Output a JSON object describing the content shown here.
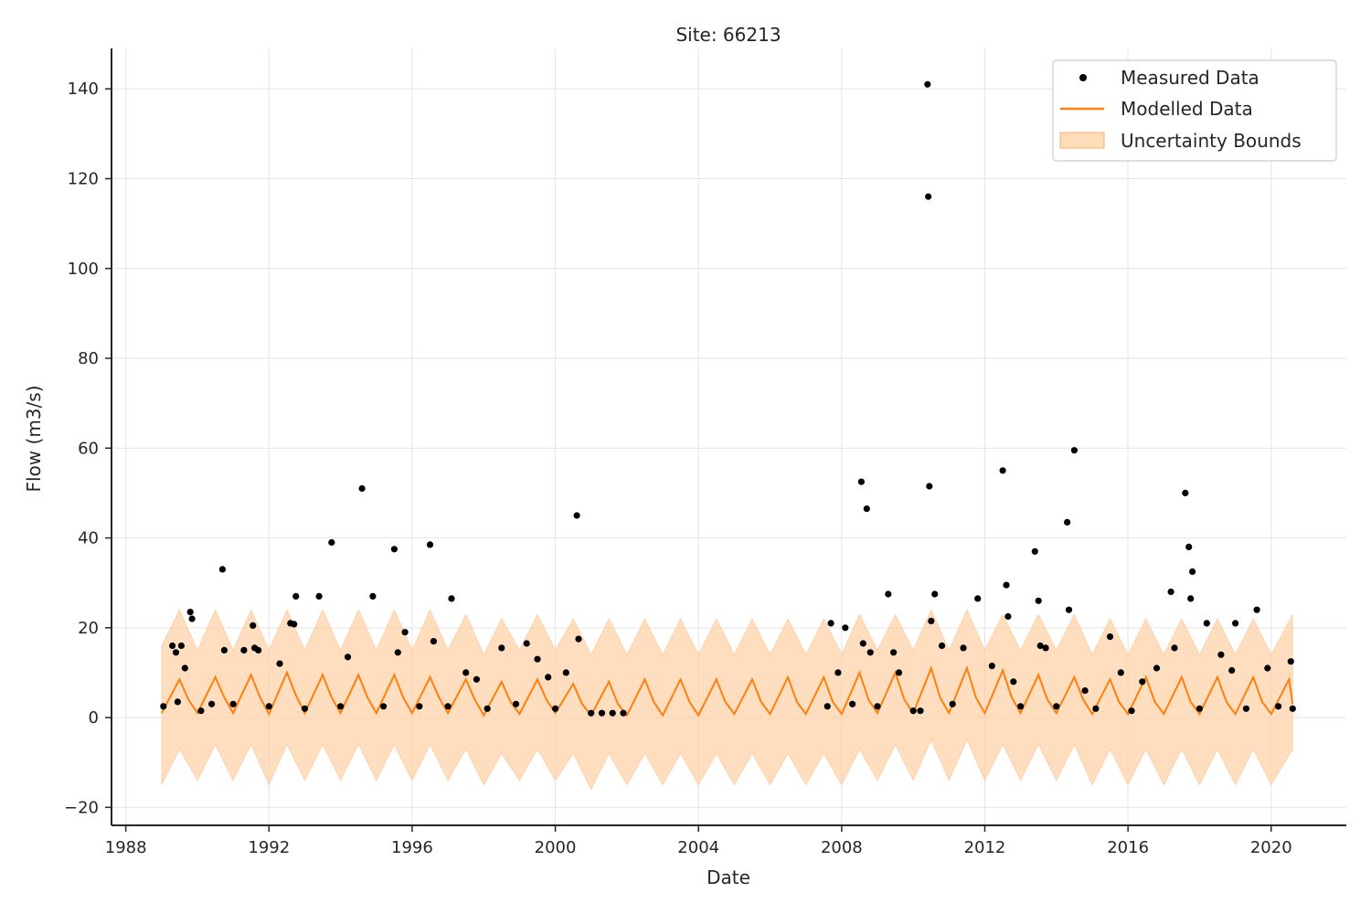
{
  "chart_data": {
    "type": "scatter",
    "title": "Site: 66213",
    "xlabel": "Date",
    "ylabel": "Flow (m3/s)",
    "xlim": [
      1987.6,
      2022.1
    ],
    "ylim": [
      -24,
      149
    ],
    "x_ticks": [
      1988,
      1992,
      1996,
      2000,
      2004,
      2008,
      2012,
      2016,
      2020
    ],
    "y_ticks": [
      -20,
      0,
      20,
      40,
      60,
      80,
      100,
      120,
      140
    ],
    "y_tick_labels": [
      "−20",
      "0",
      "20",
      "40",
      "60",
      "80",
      "100",
      "120",
      "140"
    ],
    "grid": true,
    "legend_position": "top-right",
    "legend": [
      {
        "name": "Measured Data",
        "kind": "marker",
        "color": "#000000"
      },
      {
        "name": "Modelled Data",
        "kind": "line",
        "color": "#ff7f0e"
      },
      {
        "name": "Uncertainty Bounds",
        "kind": "fill",
        "color": "#fdd0a2"
      }
    ],
    "series": [
      {
        "name": "Modelled Data",
        "type": "line",
        "color": "#ff7f0e",
        "x_range": [
          1989.0,
          2020.6
        ],
        "x": [
          1989.0,
          1989.5,
          1989.75,
          1990.0,
          1990.5,
          1990.75,
          1991.0,
          1991.5,
          1991.75,
          1992.0,
          1992.5,
          1992.75,
          1993.0,
          1993.5,
          1993.75,
          1994.0,
          1994.5,
          1994.75,
          1995.0,
          1995.5,
          1995.75,
          1996.0,
          1996.5,
          1996.75,
          1997.0,
          1997.5,
          1997.75,
          1998.0,
          1998.5,
          1998.75,
          1999.0,
          1999.5,
          1999.75,
          2000.0,
          2000.5,
          2000.75,
          2001.0,
          2001.5,
          2001.75,
          2002.0,
          2002.5,
          2002.75,
          2003.0,
          2003.5,
          2003.75,
          2004.0,
          2004.5,
          2004.75,
          2005.0,
          2005.5,
          2005.75,
          2006.0,
          2006.5,
          2006.75,
          2007.0,
          2007.5,
          2007.75,
          2008.0,
          2008.5,
          2008.75,
          2009.0,
          2009.5,
          2009.75,
          2010.0,
          2010.5,
          2010.75,
          2011.0,
          2011.5,
          2011.75,
          2012.0,
          2012.5,
          2012.75,
          2013.0,
          2013.5,
          2013.75,
          2014.0,
          2014.5,
          2014.75,
          2015.0,
          2015.5,
          2015.75,
          2016.0,
          2016.5,
          2016.75,
          2017.0,
          2017.5,
          2017.75,
          2018.0,
          2018.5,
          2018.75,
          2019.0,
          2019.5,
          2019.75,
          2020.0,
          2020.5,
          2020.6
        ],
        "y": [
          1.0,
          8.5,
          4.0,
          1.0,
          9.0,
          4.5,
          1.0,
          9.5,
          4.5,
          0.8,
          10.0,
          5.0,
          1.0,
          9.5,
          4.5,
          1.0,
          9.5,
          4.5,
          1.0,
          9.5,
          4.5,
          1.0,
          9.0,
          4.5,
          1.0,
          8.5,
          4.0,
          0.5,
          8.0,
          3.5,
          0.8,
          8.5,
          4.0,
          1.0,
          7.5,
          3.0,
          0.5,
          8.0,
          3.0,
          0.5,
          8.5,
          3.5,
          0.5,
          8.5,
          3.5,
          0.5,
          8.5,
          3.5,
          0.8,
          8.5,
          3.5,
          0.8,
          9.0,
          3.5,
          0.8,
          9.0,
          3.5,
          0.8,
          10.0,
          4.0,
          1.0,
          10.0,
          4.0,
          1.0,
          11.0,
          4.5,
          1.0,
          11.0,
          4.5,
          1.0,
          10.5,
          4.5,
          1.0,
          9.5,
          4.0,
          1.0,
          9.0,
          4.0,
          0.8,
          8.5,
          3.5,
          0.8,
          9.0,
          3.5,
          0.8,
          9.0,
          3.5,
          0.8,
          9.0,
          3.5,
          0.8,
          9.0,
          3.5,
          0.8,
          8.5,
          3.0
        ]
      },
      {
        "name": "Uncertainty Bounds",
        "type": "band",
        "color": "#fdd0a2",
        "x": [
          1989.0,
          1989.5,
          1990.0,
          1990.5,
          1991.0,
          1991.5,
          1992.0,
          1992.5,
          1993.0,
          1993.5,
          1994.0,
          1994.5,
          1995.0,
          1995.5,
          1996.0,
          1996.5,
          1997.0,
          1997.5,
          1998.0,
          1998.5,
          1999.0,
          1999.5,
          2000.0,
          2000.5,
          2001.0,
          2001.5,
          2002.0,
          2002.5,
          2003.0,
          2003.5,
          2004.0,
          2004.5,
          2005.0,
          2005.5,
          2006.0,
          2006.5,
          2007.0,
          2007.5,
          2008.0,
          2008.5,
          2009.0,
          2009.5,
          2010.0,
          2010.5,
          2011.0,
          2011.5,
          2012.0,
          2012.5,
          2013.0,
          2013.5,
          2014.0,
          2014.5,
          2015.0,
          2015.5,
          2016.0,
          2016.5,
          2017.0,
          2017.5,
          2018.0,
          2018.5,
          2019.0,
          2019.5,
          2020.0,
          2020.6
        ],
        "upper": [
          16,
          24,
          15,
          24,
          15,
          24,
          15,
          24,
          15,
          24,
          15,
          24,
          15,
          24,
          15,
          24,
          15,
          23,
          14,
          22,
          15,
          23,
          15,
          22,
          14,
          22,
          14,
          22,
          14,
          22,
          14,
          22,
          14,
          22,
          14,
          22,
          14,
          22,
          14,
          23,
          15,
          23,
          15,
          24,
          15,
          24,
          15,
          23,
          15,
          23,
          15,
          23,
          14,
          22,
          14,
          22,
          14,
          22,
          14,
          22,
          14,
          22,
          14,
          23
        ],
        "lower": [
          -15,
          -7,
          -14,
          -6,
          -14,
          -6,
          -15,
          -6,
          -14,
          -6,
          -14,
          -6,
          -14,
          -6,
          -14,
          -6,
          -14,
          -7,
          -15,
          -8,
          -14,
          -7,
          -14,
          -8,
          -16,
          -8,
          -15,
          -8,
          -15,
          -8,
          -15,
          -8,
          -15,
          -8,
          -15,
          -8,
          -15,
          -8,
          -15,
          -7,
          -14,
          -6,
          -14,
          -5,
          -14,
          -5,
          -14,
          -6,
          -14,
          -6,
          -14,
          -6,
          -15,
          -7,
          -15,
          -7,
          -15,
          -7,
          -15,
          -7,
          -15,
          -7,
          -15,
          -7
        ]
      },
      {
        "name": "Measured Data",
        "type": "scatter",
        "color": "#000000",
        "x": [
          1989.05,
          1989.3,
          1989.4,
          1989.45,
          1989.55,
          1989.65,
          1989.8,
          1989.85,
          1990.1,
          1990.4,
          1990.7,
          1990.75,
          1991.0,
          1991.3,
          1991.55,
          1991.6,
          1991.7,
          1992.0,
          1992.3,
          1992.6,
          1992.7,
          1992.75,
          1993.0,
          1993.4,
          1993.75,
          1994.0,
          1994.2,
          1994.6,
          1994.9,
          1995.2,
          1995.5,
          1995.6,
          1995.8,
          1996.2,
          1996.5,
          1996.6,
          1997.0,
          1997.1,
          1997.5,
          1997.8,
          1998.1,
          1998.5,
          1998.9,
          1999.2,
          1999.5,
          1999.8,
          2000.0,
          2000.3,
          2000.6,
          2000.65,
          2001.0,
          2001.3,
          2001.6,
          2001.9,
          2007.6,
          2007.7,
          2007.9,
          2008.1,
          2008.3,
          2008.55,
          2008.6,
          2008.7,
          2008.8,
          2009.0,
          2009.3,
          2009.45,
          2009.6,
          2010.0,
          2010.2,
          2010.4,
          2010.42,
          2010.45,
          2010.5,
          2010.6,
          2010.8,
          2011.1,
          2011.4,
          2011.8,
          2012.2,
          2012.5,
          2012.6,
          2012.65,
          2012.8,
          2013.0,
          2013.4,
          2013.5,
          2013.55,
          2013.7,
          2014.0,
          2014.3,
          2014.35,
          2014.5,
          2014.8,
          2015.1,
          2015.5,
          2015.8,
          2016.1,
          2016.4,
          2016.8,
          2017.2,
          2017.3,
          2017.6,
          2017.7,
          2017.75,
          2017.8,
          2018.0,
          2018.2,
          2018.6,
          2018.9,
          2019.0,
          2019.3,
          2019.6,
          2019.9,
          2020.2,
          2020.55,
          2020.6
        ],
        "y": [
          2.5,
          16,
          14.5,
          3.5,
          16,
          11,
          23.5,
          22,
          1.5,
          3.0,
          33,
          15,
          3.0,
          15,
          20.5,
          15.5,
          15,
          2.5,
          12,
          21,
          20.8,
          27,
          2.0,
          27,
          39,
          2.5,
          13.5,
          51,
          27,
          2.5,
          37.5,
          14.5,
          19,
          2.5,
          38.5,
          17,
          2.5,
          26.5,
          10,
          8.5,
          2.0,
          15.5,
          3.0,
          16.5,
          13,
          9,
          2.0,
          10,
          45,
          17.5,
          1.0,
          1.0,
          1.0,
          1.0,
          2.5,
          21,
          10,
          20,
          3.0,
          52.5,
          16.5,
          46.5,
          14.5,
          2.5,
          27.5,
          14.5,
          10,
          1.5,
          1.5,
          141,
          116,
          51.5,
          21.5,
          27.5,
          16,
          3.0,
          15.5,
          26.5,
          11.5,
          55,
          29.5,
          22.5,
          8,
          2.5,
          37,
          26,
          16,
          15.5,
          2.5,
          43.5,
          24,
          59.5,
          6,
          2.0,
          18,
          10,
          1.5,
          8,
          11,
          28,
          15.5,
          50,
          38,
          26.5,
          32.5,
          2.0,
          21,
          14,
          10.5,
          21,
          2.0,
          24,
          11,
          2.5,
          12.5,
          2.0
        ]
      }
    ]
  }
}
